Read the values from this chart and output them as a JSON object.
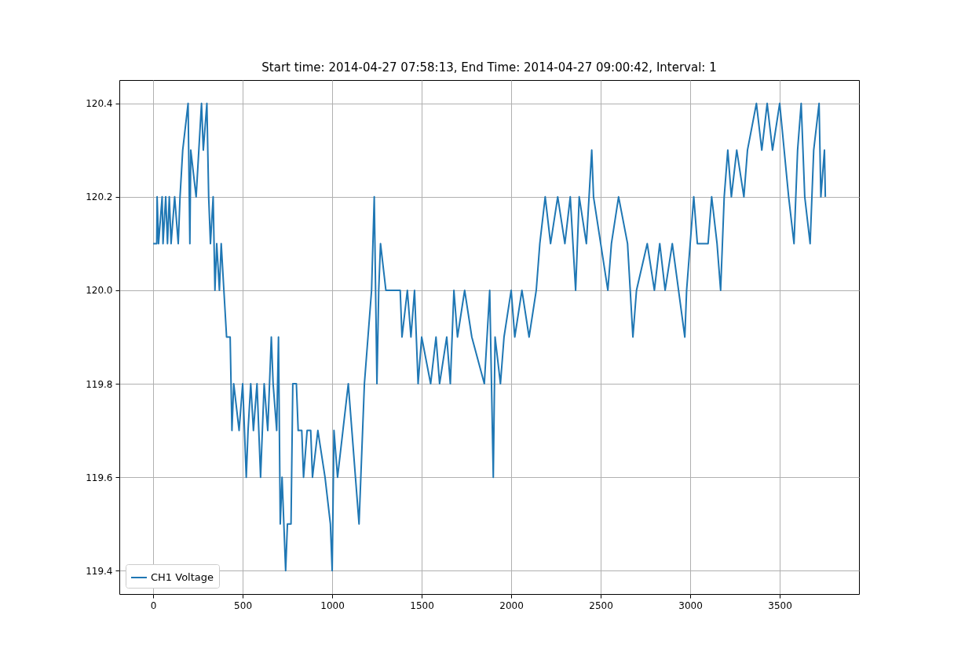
{
  "chart_data": {
    "type": "line",
    "title": "Start time: 2014-04-27 07:58:13, End Time: 2014-04-27 09:00:42, Interval: 1",
    "xlim": [
      -189,
      3943
    ],
    "ylim": [
      119.35,
      120.45
    ],
    "xticks": [
      0,
      500,
      1000,
      1500,
      2000,
      2500,
      3000,
      3500
    ],
    "yticks": [
      119.4,
      119.6,
      119.8,
      {
        "value": 120,
        "label": "120.0"
      },
      120.2,
      120.4
    ],
    "grid": true,
    "legend": "bottom left",
    "line_style": "solid",
    "marker": "none",
    "x": [
      0,
      20,
      22,
      30,
      50,
      55,
      70,
      80,
      90,
      100,
      120,
      140,
      150,
      165,
      195,
      205,
      210,
      240,
      270,
      280,
      300,
      310,
      320,
      335,
      345,
      355,
      370,
      380,
      395,
      410,
      430,
      440,
      450,
      480,
      500,
      520,
      530,
      545,
      560,
      580,
      600,
      620,
      640,
      660,
      670,
      690,
      700,
      710,
      720,
      740,
      750,
      770,
      780,
      800,
      810,
      830,
      840,
      860,
      880,
      890,
      920,
      960,
      990,
      1000,
      1010,
      1030,
      1060,
      1090,
      1110,
      1130,
      1150,
      1160,
      1180,
      1200,
      1220,
      1235,
      1250,
      1260,
      1270,
      1300,
      1380,
      1390,
      1420,
      1440,
      1460,
      1480,
      1500,
      1550,
      1580,
      1600,
      1640,
      1660,
      1680,
      1700,
      1740,
      1780,
      1850,
      1880,
      1900,
      1910,
      1940,
      1960,
      2000,
      2020,
      2060,
      2100,
      2140,
      2160,
      2190,
      2220,
      2260,
      2300,
      2330,
      2360,
      2380,
      2420,
      2450,
      2460,
      2500,
      2540,
      2560,
      2600,
      2650,
      2680,
      2700,
      2760,
      2800,
      2830,
      2860,
      2900,
      2970,
      2980,
      3000,
      3020,
      3040,
      3100,
      3120,
      3150,
      3170,
      3190,
      3210,
      3230,
      3260,
      3300,
      3320,
      3370,
      3400,
      3430,
      3460,
      3500,
      3550,
      3580,
      3600,
      3620,
      3640,
      3670,
      3690,
      3720,
      3730,
      3750,
      3755
    ],
    "series": [
      {
        "name": "CH1 Voltage",
        "color": "#1f77b4",
        "values": [
          120.1,
          120.1,
          120.2,
          120.1,
          120.2,
          120.1,
          120.2,
          120.1,
          120.2,
          120.1,
          120.2,
          120.1,
          120.2,
          120.3,
          120.4,
          120.1,
          120.3,
          120.2,
          120.4,
          120.3,
          120.4,
          120.2,
          120.1,
          120.2,
          120.0,
          120.1,
          120.0,
          120.1,
          120.0,
          119.9,
          119.9,
          119.7,
          119.8,
          119.7,
          119.8,
          119.6,
          119.7,
          119.8,
          119.7,
          119.8,
          119.6,
          119.8,
          119.7,
          119.9,
          119.8,
          119.7,
          119.9,
          119.5,
          119.6,
          119.4,
          119.5,
          119.5,
          119.8,
          119.8,
          119.7,
          119.7,
          119.6,
          119.7,
          119.7,
          119.6,
          119.7,
          119.6,
          119.5,
          119.4,
          119.7,
          119.6,
          119.7,
          119.8,
          119.7,
          119.6,
          119.5,
          119.6,
          119.8,
          119.9,
          120.0,
          120.2,
          119.8,
          120.0,
          120.1,
          120.0,
          120.0,
          119.9,
          120.0,
          119.9,
          120.0,
          119.8,
          119.9,
          119.8,
          119.9,
          119.8,
          119.9,
          119.8,
          120.0,
          119.9,
          120.0,
          119.9,
          119.8,
          120.0,
          119.6,
          119.9,
          119.8,
          119.9,
          120.0,
          119.9,
          120.0,
          119.9,
          120.0,
          120.1,
          120.2,
          120.1,
          120.2,
          120.1,
          120.2,
          120.0,
          120.2,
          120.1,
          120.3,
          120.2,
          120.1,
          120.0,
          120.1,
          120.2,
          120.1,
          119.9,
          120.0,
          120.1,
          120.0,
          120.1,
          120.0,
          120.1,
          119.9,
          120.0,
          120.1,
          120.2,
          120.1,
          120.1,
          120.2,
          120.1,
          120.0,
          120.2,
          120.3,
          120.2,
          120.3,
          120.2,
          120.3,
          120.4,
          120.3,
          120.4,
          120.3,
          120.4,
          120.2,
          120.1,
          120.3,
          120.4,
          120.2,
          120.1,
          120.3,
          120.4,
          120.2,
          120.3,
          120.2
        ]
      }
    ]
  }
}
